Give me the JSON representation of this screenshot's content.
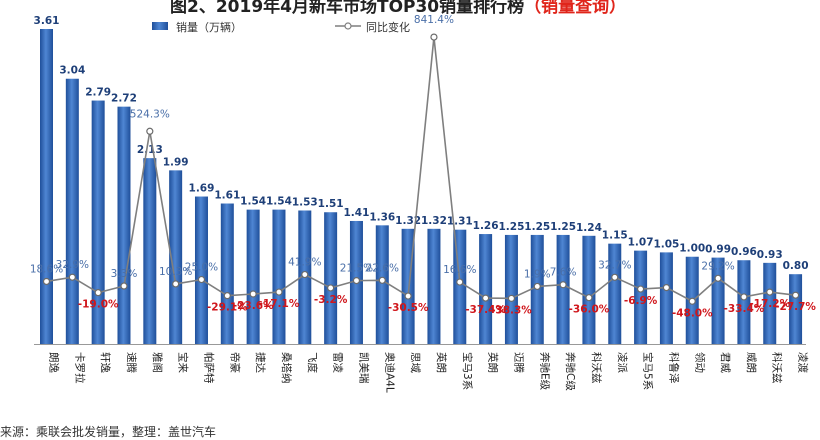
{
  "chart_data": {
    "type": "bar",
    "title": "图2、2019年4月新车市场TOP30销量排行榜",
    "title_highlight": "（销量查询）",
    "categories": [
      "朗逸",
      "卡罗拉",
      "轩逸",
      "速腾",
      "雅阁",
      "宝来",
      "帕萨特",
      "帝豪",
      "捷达",
      "桑塔纳",
      "飞度",
      "雷凌",
      "凯美瑞",
      "奥迪A4L",
      "思域",
      "英朗",
      "宝马3系",
      "英朗",
      "迈腾",
      "奔驰E级",
      "奔驰C级",
      "科沃兹",
      "凌派",
      "宝马5系",
      "科鲁泽",
      "领动",
      "君威",
      "威朗",
      "科沃兹",
      "凌渡"
    ],
    "series": [
      {
        "name": "销量（万辆）",
        "values": [
          3.61,
          3.04,
          2.79,
          2.72,
          2.13,
          1.99,
          1.69,
          1.61,
          1.54,
          1.54,
          1.53,
          1.51,
          1.41,
          1.36,
          1.32,
          1.32,
          1.31,
          1.26,
          1.25,
          1.25,
          1.25,
          1.24,
          1.15,
          1.07,
          1.05,
          1.0,
          0.99,
          0.96,
          0.93,
          0.8
        ],
        "color": "#3a6fbd"
      },
      {
        "name": "同比变化",
        "values": [
          18.6,
          32.9,
          -19.0,
          3.3,
          524.3,
          10.3,
          25.0,
          -29.1,
          -23.6,
          -17.1,
          41.9,
          -3.2,
          21.5,
          22.6,
          -30.5,
          841.4,
          16.6,
          -37.4,
          -38.3,
          1.9,
          7.6,
          -36.0,
          32.7,
          -6.9,
          -2.0,
          -48.0,
          29.2,
          -33.4,
          -17.2,
          -27.7
        ],
        "color": "#7f7f7f"
      }
    ],
    "bar_labels": [
      "3.61",
      "3.04",
      "2.79",
      "2.72",
      "2.13",
      "1.99",
      "1.69",
      "1.61",
      "1.54",
      "1.54",
      "1.53",
      "1.51",
      "1.41",
      "1.36",
      "1.32",
      "1.32",
      "1.31",
      "1.26",
      "1.25",
      "1.25",
      "1.25",
      "1.24",
      "1.15",
      "1.07",
      "1.05",
      "1.00",
      "0.99",
      "0.96",
      "0.93",
      "0.80"
    ],
    "line_labels": [
      "18.6%",
      "32.9%",
      "-19.0%",
      "3.3%",
      "524.3%",
      "10.3%",
      "25.0%",
      "-29.1%",
      "-23.6%",
      "-17.1%",
      "41.9%",
      "-3.2%",
      "21.5%",
      "22.6%",
      "-30.5%",
      "841.4%",
      "16.6%",
      "-37.4%",
      "-38.3%",
      "1.9%",
      "7.6%",
      "-36.0%",
      "32.7%",
      "-6.9%",
      "",
      "-48.0%",
      "29.2%",
      "-33.4%",
      "-17.2%",
      "-27.7%"
    ],
    "legend": [
      "销量（万辆）",
      "同比变化"
    ],
    "positive_label_color": "#4a6fa8",
    "negative_label_color": "#d0161c",
    "source": "来源：乘联会批发销量，整理：盖世汽车"
  }
}
